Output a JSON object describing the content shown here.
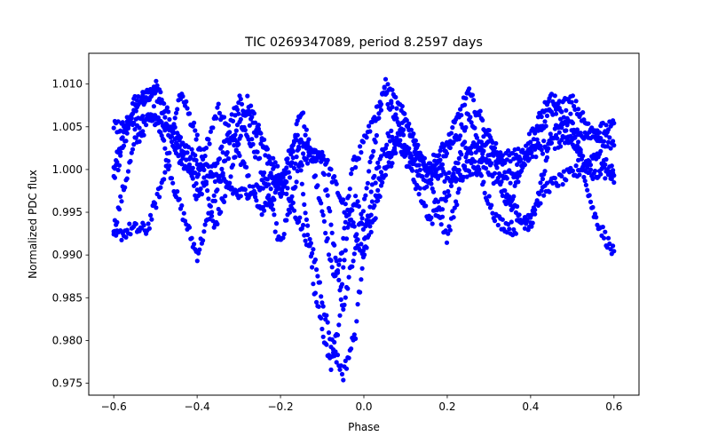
{
  "chart_data": {
    "type": "scatter",
    "title": "TIC 0269347089, period 8.2597 days",
    "xlabel": "Phase",
    "ylabel": "Normalized PDC flux",
    "xlim": [
      -0.66,
      0.66
    ],
    "ylim": [
      0.9736,
      1.0136
    ],
    "xticks": [
      -0.6,
      -0.4,
      -0.2,
      0.0,
      0.2,
      0.4,
      0.6
    ],
    "xtick_labels": [
      "−0.6",
      "−0.4",
      "−0.2",
      "0.0",
      "0.2",
      "0.4",
      "0.6"
    ],
    "yticks": [
      0.975,
      0.98,
      0.985,
      0.99,
      0.995,
      1.0,
      1.005,
      1.01
    ],
    "ytick_labels": [
      "0.975",
      "0.980",
      "0.985",
      "0.990",
      "0.995",
      "1.000",
      "1.005",
      "1.010"
    ],
    "grid": false,
    "marker_color": "#0000ff",
    "x_range": [
      -0.6,
      0.6
    ],
    "series": [
      {
        "x": [
          -0.6,
          -0.55,
          -0.5,
          -0.45,
          -0.4,
          -0.35,
          -0.3,
          -0.25,
          -0.2,
          -0.15,
          -0.1,
          -0.07,
          -0.05,
          -0.03,
          0.0,
          0.05,
          0.1,
          0.15,
          0.2,
          0.25,
          0.3,
          0.35,
          0.4,
          0.45,
          0.5,
          0.55,
          0.6
        ],
        "values": [
          1.0,
          1.008,
          1.009,
          1.002,
          0.999,
          1.007,
          1.002,
          0.995,
          0.998,
          1.007,
          0.995,
          0.987,
          0.991,
          1.0,
          1.003,
          1.009,
          1.003,
          0.998,
          1.002,
          1.006,
          1.0,
          0.996,
          1.004,
          1.009,
          1.003,
          0.999,
          1.0
        ]
      },
      {
        "x": [
          -0.6,
          -0.55,
          -0.5,
          -0.45,
          -0.4,
          -0.35,
          -0.3,
          -0.25,
          -0.2,
          -0.15,
          -0.1,
          -0.05,
          0.0,
          0.05,
          0.1,
          0.15,
          0.2,
          0.25,
          0.3,
          0.35,
          0.4,
          0.45,
          0.5,
          0.55,
          0.6
        ],
        "values": [
          0.993,
          1.003,
          1.007,
          0.997,
          0.99,
          0.998,
          1.006,
          1.001,
          0.991,
          1.001,
          1.002,
          0.996,
          0.99,
          0.999,
          1.006,
          1.0,
          0.992,
          1.002,
          1.004,
          0.996,
          0.993,
          1.004,
          1.006,
          0.995,
          0.99
        ]
      },
      {
        "x": [
          -0.6,
          -0.56,
          -0.52,
          -0.48,
          -0.44,
          -0.4,
          -0.36,
          -0.32,
          -0.28,
          -0.24,
          -0.2,
          -0.16,
          -0.12,
          -0.08,
          -0.06,
          -0.04,
          -0.02,
          0.0,
          0.04,
          0.08,
          0.12,
          0.16,
          0.2,
          0.24,
          0.28,
          0.32,
          0.36,
          0.4,
          0.44,
          0.48,
          0.52,
          0.56,
          0.6
        ],
        "values": [
          0.992,
          0.993,
          0.993,
          0.999,
          1.009,
          1.004,
          0.993,
          0.999,
          1.008,
          1.003,
          0.999,
          1.004,
          0.986,
          0.977,
          0.982,
          0.993,
          0.997,
          0.992,
          0.999,
          1.004,
          0.999,
          0.994,
          0.997,
          1.003,
          0.999,
          0.994,
          0.993,
          0.995,
          0.998,
          0.999,
          1.0,
          1.002,
          0.999
        ]
      },
      {
        "x": [
          -0.6,
          -0.5,
          -0.4,
          -0.3,
          -0.2,
          -0.12,
          -0.08,
          -0.05,
          -0.02,
          0.0,
          0.02,
          0.06,
          0.1,
          0.2,
          0.3,
          0.4,
          0.5,
          0.6
        ],
        "values": [
          1.005,
          1.006,
          1.001,
          0.997,
          0.999,
          0.99,
          0.98,
          0.976,
          0.981,
          0.991,
          0.998,
          1.004,
          1.002,
          0.999,
          1.001,
          1.002,
          1.004,
          1.005
        ]
      },
      {
        "x": [
          -0.6,
          -0.55,
          -0.5,
          -0.45,
          -0.4,
          -0.35,
          -0.3,
          -0.25,
          -0.2,
          -0.15,
          -0.1,
          -0.05,
          0.0,
          0.05,
          0.1,
          0.15,
          0.2,
          0.25,
          0.3,
          0.35,
          0.4,
          0.45,
          0.5,
          0.55,
          0.6
        ],
        "values": [
          0.999,
          1.007,
          1.01,
          1.004,
          0.997,
          1.001,
          1.008,
          1.004,
          0.997,
          1.003,
          1.001,
          0.984,
          0.996,
          1.01,
          1.006,
          1.0,
          1.003,
          1.009,
          1.004,
          0.999,
          1.002,
          1.007,
          1.008,
          1.004,
          1.003
        ]
      }
    ]
  }
}
